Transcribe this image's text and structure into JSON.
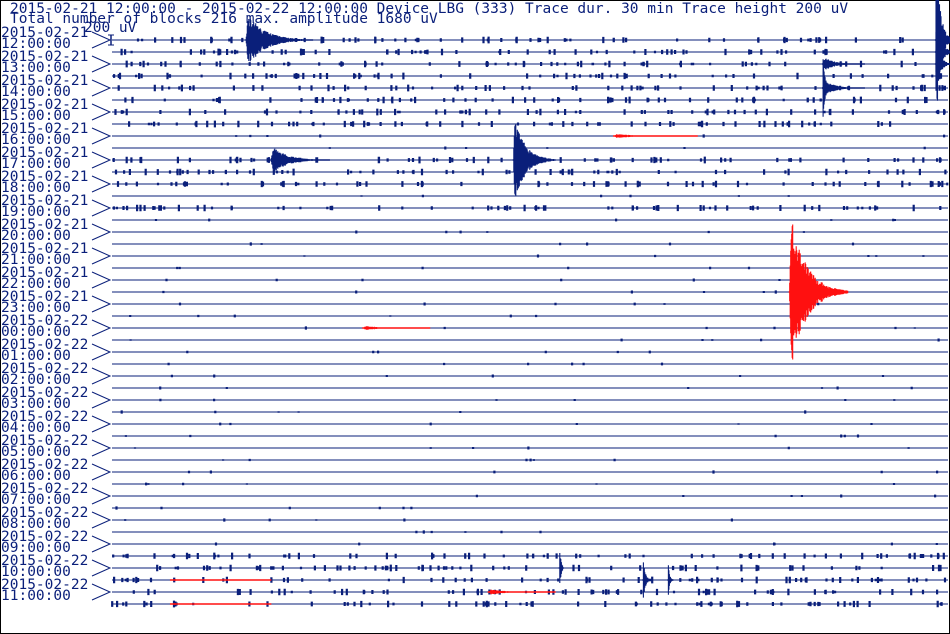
{
  "header": {
    "line1": "2015-02-21 12:00:00 - 2015-02-22 12:00:00  Device  LBG (333)  Trace dur. 30 min  Trace height 200 uV",
    "line2": "Total number of blocks 216 max. amplitude 1680 uV",
    "scale_label": "200 uV"
  },
  "colors": {
    "trace": "#0a1f7a",
    "event": "#ff1010",
    "text": "#0a1f7a",
    "frame": "#000000",
    "background": "#ffffff"
  },
  "chart_data": {
    "type": "helicorder",
    "device": "LBG (333)",
    "start": "2015-02-21 12:00:00",
    "end": "2015-02-22 12:00:00",
    "trace_duration_min": 30,
    "trace_height_uV": 200,
    "total_blocks": 216,
    "max_amplitude_uV": 1680,
    "hour_labels": [
      {
        "date": "2015-02-21",
        "time": "12:00:00"
      },
      {
        "date": "2015-02-21",
        "time": "13:00:00"
      },
      {
        "date": "2015-02-21",
        "time": "14:00:00"
      },
      {
        "date": "2015-02-21",
        "time": "15:00:00"
      },
      {
        "date": "2015-02-21",
        "time": "16:00:00"
      },
      {
        "date": "2015-02-21",
        "time": "17:00:00"
      },
      {
        "date": "2015-02-21",
        "time": "18:00:00"
      },
      {
        "date": "2015-02-21",
        "time": "19:00:00"
      },
      {
        "date": "2015-02-21",
        "time": "20:00:00"
      },
      {
        "date": "2015-02-21",
        "time": "21:00:00"
      },
      {
        "date": "2015-02-21",
        "time": "22:00:00"
      },
      {
        "date": "2015-02-21",
        "time": "23:00:00"
      },
      {
        "date": "2015-02-22",
        "time": "00:00:00"
      },
      {
        "date": "2015-02-22",
        "time": "01:00:00"
      },
      {
        "date": "2015-02-22",
        "time": "02:00:00"
      },
      {
        "date": "2015-02-22",
        "time": "03:00:00"
      },
      {
        "date": "2015-02-22",
        "time": "04:00:00"
      },
      {
        "date": "2015-02-22",
        "time": "05:00:00"
      },
      {
        "date": "2015-02-22",
        "time": "06:00:00"
      },
      {
        "date": "2015-02-22",
        "time": "07:00:00"
      },
      {
        "date": "2015-02-22",
        "time": "08:00:00"
      },
      {
        "date": "2015-02-22",
        "time": "09:00:00"
      },
      {
        "date": "2015-02-22",
        "time": "10:00:00"
      },
      {
        "date": "2015-02-22",
        "time": "11:00:00"
      }
    ],
    "events": [
      {
        "trace": 0,
        "t": 0.16,
        "amp_uV": 520,
        "dur": 0.08,
        "color": "trace"
      },
      {
        "trace": 0,
        "t": 0.985,
        "amp_uV": 1680,
        "dur": 0.02,
        "color": "trace"
      },
      {
        "trace": 1,
        "t": 0.985,
        "amp_uV": 900,
        "dur": 0.02,
        "color": "trace"
      },
      {
        "trace": 2,
        "t": 0.85,
        "amp_uV": 140,
        "dur": 0.05,
        "color": "trace"
      },
      {
        "trace": 2,
        "t": 0.985,
        "amp_uV": 500,
        "dur": 0.02,
        "color": "trace"
      },
      {
        "trace": 4,
        "t": 0.85,
        "amp_uV": 160,
        "dur": 0.05,
        "color": "trace"
      },
      {
        "trace": 4,
        "t": 0.85,
        "amp_uV": 700,
        "dur": 0.01,
        "color": "trace"
      },
      {
        "trace": 10,
        "t": 0.19,
        "amp_uV": 260,
        "dur": 0.07,
        "color": "trace"
      },
      {
        "trace": 10,
        "t": 0.48,
        "amp_uV": 840,
        "dur": 0.05,
        "color": "trace"
      },
      {
        "trace": 8,
        "t": 0.6,
        "amp_uV": 40,
        "dur": 0.1,
        "color": "event"
      },
      {
        "trace": 21,
        "t": 0.81,
        "amp_uV": 1540,
        "dur": 0.07,
        "color": "event"
      },
      {
        "trace": 24,
        "t": 0.3,
        "amp_uV": 40,
        "dur": 0.08,
        "color": "event"
      },
      {
        "trace": 44,
        "t": 0.535,
        "amp_uV": 750,
        "dur": 0.005,
        "color": "trace"
      },
      {
        "trace": 45,
        "t": 0.635,
        "amp_uV": 430,
        "dur": 0.01,
        "color": "trace"
      },
      {
        "trace": 45,
        "t": 0.665,
        "amp_uV": 430,
        "dur": 0.006,
        "color": "trace"
      },
      {
        "trace": 46,
        "t": 0.45,
        "amp_uV": 50,
        "dur": 0.08,
        "color": "event"
      },
      {
        "trace": 45,
        "t": 0.07,
        "amp_uV": 20,
        "dur": 0.12,
        "color": "event"
      },
      {
        "trace": 47,
        "t": 0.07,
        "amp_uV": 20,
        "dur": 0.12,
        "color": "event"
      }
    ],
    "active_traces": [
      0,
      1,
      2,
      3,
      4,
      5,
      6,
      7,
      10,
      11,
      12,
      14,
      43,
      44,
      45,
      46,
      47
    ]
  }
}
